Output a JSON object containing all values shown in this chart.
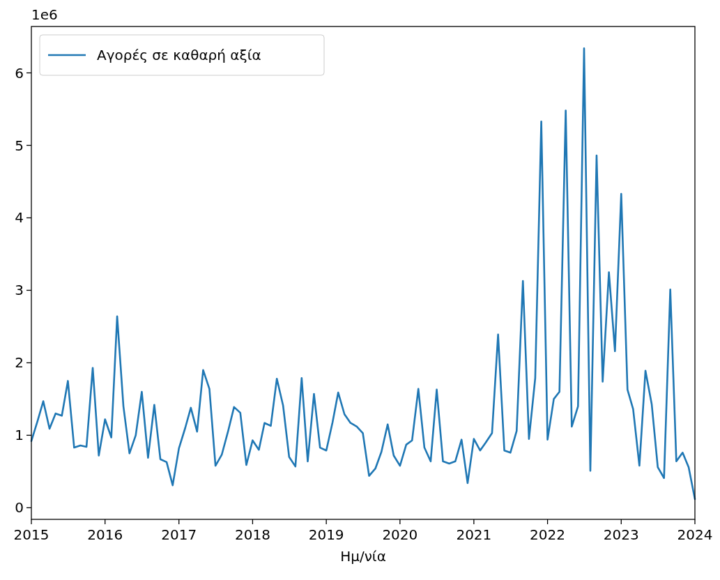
{
  "chart_data": {
    "type": "line",
    "xlabel": "Ημ/νία",
    "annotations": [
      "1e6"
    ],
    "x": [
      "2015-01",
      "2015-02",
      "2015-03",
      "2015-04",
      "2015-05",
      "2015-06",
      "2015-07",
      "2015-08",
      "2015-09",
      "2015-10",
      "2015-11",
      "2015-12",
      "2016-01",
      "2016-02",
      "2016-03",
      "2016-04",
      "2016-05",
      "2016-06",
      "2016-07",
      "2016-08",
      "2016-09",
      "2016-10",
      "2016-11",
      "2016-12",
      "2017-01",
      "2017-02",
      "2017-03",
      "2017-04",
      "2017-05",
      "2017-06",
      "2017-07",
      "2017-08",
      "2017-09",
      "2017-10",
      "2017-11",
      "2017-12",
      "2018-01",
      "2018-02",
      "2018-03",
      "2018-04",
      "2018-05",
      "2018-06",
      "2018-07",
      "2018-08",
      "2018-09",
      "2018-10",
      "2018-11",
      "2018-12",
      "2019-01",
      "2019-02",
      "2019-03",
      "2019-04",
      "2019-05",
      "2019-06",
      "2019-07",
      "2019-08",
      "2019-09",
      "2019-10",
      "2019-11",
      "2019-12",
      "2020-01",
      "2020-02",
      "2020-03",
      "2020-04",
      "2020-05",
      "2020-06",
      "2020-07",
      "2020-08",
      "2020-09",
      "2020-10",
      "2020-11",
      "2020-12",
      "2021-01",
      "2021-02",
      "2021-03",
      "2021-04",
      "2021-05",
      "2021-06",
      "2021-07",
      "2021-08",
      "2021-09",
      "2021-10",
      "2021-11",
      "2021-12",
      "2022-01",
      "2022-02",
      "2022-03",
      "2022-04",
      "2022-05",
      "2022-06",
      "2022-07",
      "2022-08",
      "2022-09",
      "2022-10",
      "2022-11",
      "2022-12",
      "2023-01",
      "2023-02",
      "2023-03",
      "2023-04",
      "2023-05",
      "2023-06",
      "2023-07",
      "2023-08",
      "2023-09",
      "2023-10",
      "2023-11",
      "2023-12",
      "2024-01"
    ],
    "series": [
      {
        "name": "Αγορές σε καθαρή αξία",
        "color": "#1f77b4",
        "values": [
          0.92,
          1.2,
          1.47,
          1.09,
          1.3,
          1.27,
          1.75,
          0.83,
          0.86,
          0.84,
          1.93,
          0.72,
          1.22,
          0.97,
          2.64,
          1.4,
          0.75,
          1.0,
          1.6,
          0.69,
          1.42,
          0.67,
          0.63,
          0.31,
          0.82,
          1.1,
          1.38,
          1.05,
          1.9,
          1.64,
          0.58,
          0.73,
          1.05,
          1.39,
          1.31,
          0.59,
          0.93,
          0.8,
          1.17,
          1.13,
          1.78,
          1.41,
          0.7,
          0.57,
          1.79,
          0.64,
          1.57,
          0.83,
          0.79,
          1.18,
          1.59,
          1.29,
          1.17,
          1.12,
          1.03,
          0.44,
          0.54,
          0.77,
          1.15,
          0.72,
          0.58,
          0.87,
          0.93,
          1.64,
          0.83,
          0.64,
          1.63,
          0.64,
          0.61,
          0.64,
          0.94,
          0.34,
          0.95,
          0.79,
          0.9,
          1.03,
          2.39,
          0.79,
          0.76,
          1.06,
          3.13,
          0.95,
          1.79,
          5.33,
          0.94,
          1.5,
          1.6,
          5.48,
          1.12,
          1.4,
          6.34,
          0.51,
          4.86,
          1.74,
          3.25,
          2.16,
          4.33,
          1.63,
          1.36,
          0.58,
          1.89,
          1.43,
          0.56,
          0.41,
          3.01,
          0.64,
          0.76,
          0.56,
          0.12
        ]
      }
    ],
    "xlim": [
      "2015-01",
      "2024-01"
    ],
    "xticks": [
      "2015",
      "2016",
      "2017",
      "2018",
      "2019",
      "2020",
      "2021",
      "2022",
      "2023",
      "2024"
    ],
    "ylim": [
      -0.16,
      6.64
    ],
    "yticks": [
      0,
      1,
      2,
      3,
      4,
      5,
      6
    ],
    "legend": "top left",
    "line_style": "solid"
  }
}
